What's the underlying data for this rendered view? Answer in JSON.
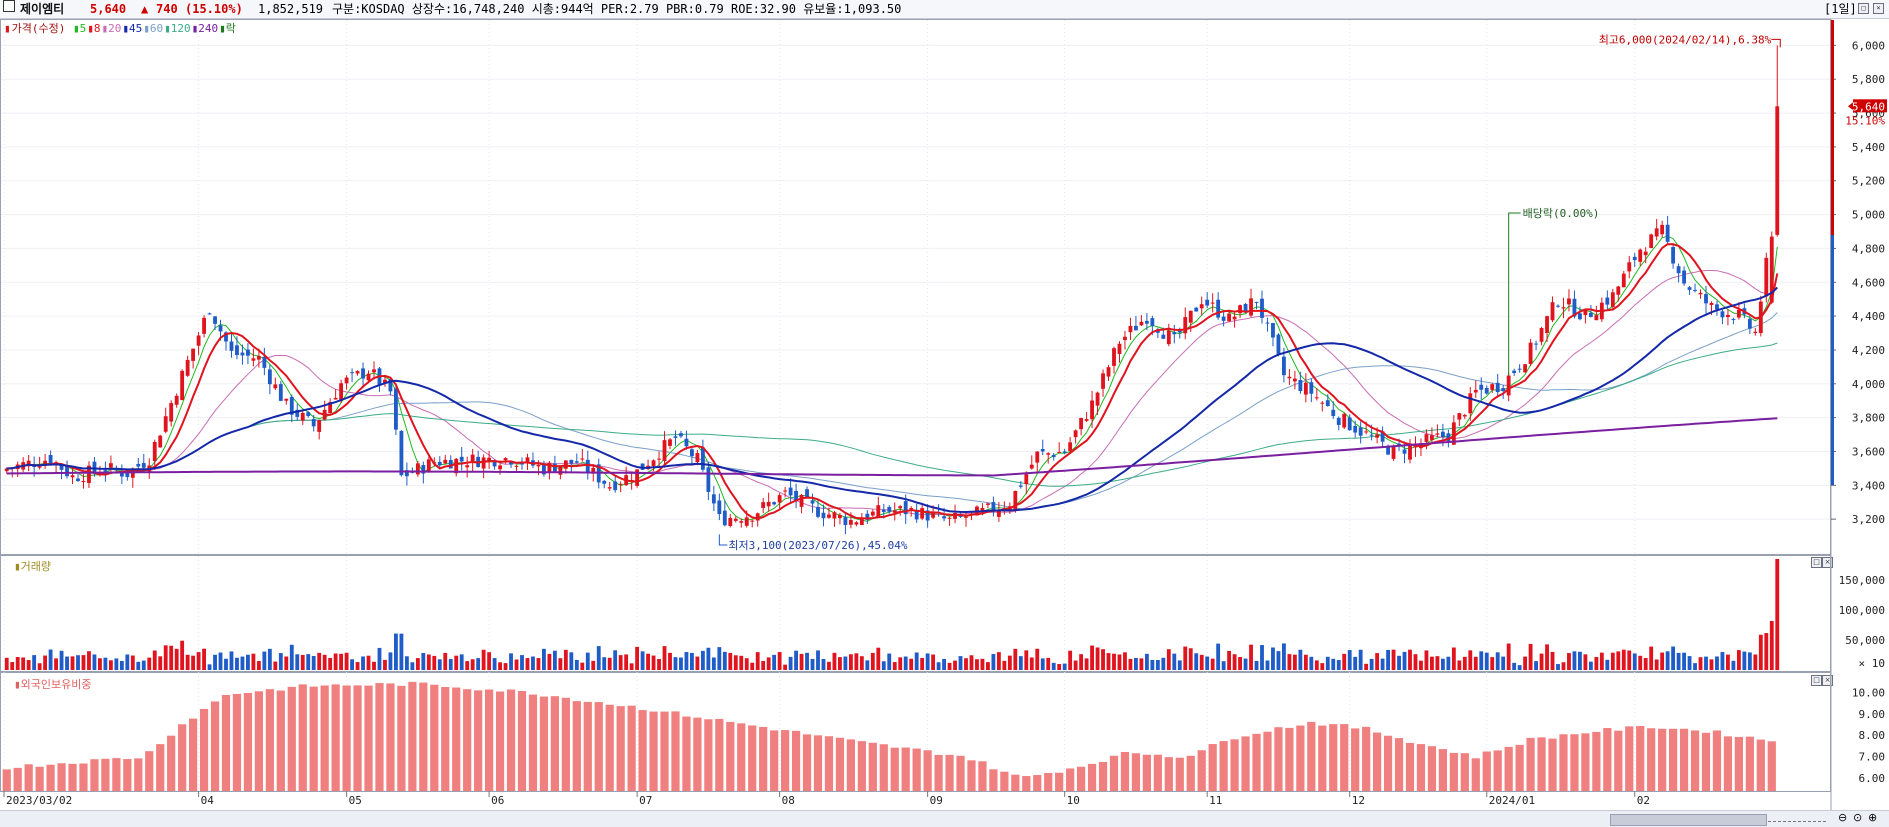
{
  "header": {
    "stock_name": "제이엠티",
    "price": "5,640",
    "change_arrow": "▲",
    "change": "740",
    "change_pct": "(15.10%)",
    "volume": "1,852,519",
    "info": "구분:KOSDAQ 상장수:16,748,240 시총:944억 PER:2.79 PBR:0.79 ROE:32.90 유보율:1,093.50",
    "period_button": "[1일]"
  },
  "legend": {
    "title": "가격(수정)",
    "items": [
      {
        "label": "5",
        "color": "#1fb91f"
      },
      {
        "label": "8",
        "color": "#e0141e"
      },
      {
        "label": "20",
        "color": "#c86eb4"
      },
      {
        "label": "45",
        "color": "#1428a8"
      },
      {
        "label": "60",
        "color": "#7aa0c8"
      },
      {
        "label": "120",
        "color": "#3cac86"
      },
      {
        "label": "240",
        "color": "#7a1fa0"
      },
      {
        "label": "락",
        "color": "#1f7a1f"
      }
    ]
  },
  "annotations": {
    "high": "최고6,000(2024/02/14),6.38%",
    "low": "최저3,100(2023/07/26),45.04%",
    "dividend": "배당락(0.00%)",
    "current_price_tag": "5,640",
    "current_pct_tag": "15.10%"
  },
  "panes": {
    "volume_label": "거래량",
    "foreign_label": "외국인보유비중"
  },
  "chart_data": [
    {
      "type": "candlestick",
      "title": "가격(수정)",
      "x_tick_labels": [
        "2023/03/02",
        "04",
        "05",
        "06",
        "07",
        "08",
        "09",
        "10",
        "11",
        "12",
        "2024/01",
        "02"
      ],
      "y_tick_labels": [
        "6,000",
        "5,800",
        "5,600",
        "5,400",
        "5,200",
        "5,000",
        "4,800",
        "4,600",
        "4,400",
        "4,200",
        "4,000",
        "3,800",
        "3,600",
        "3,400",
        "3,200"
      ],
      "ylim": [
        3000,
        6150
      ],
      "moving_averages": [
        "5",
        "8",
        "20",
        "45",
        "60",
        "120",
        "240"
      ],
      "last_close": 5640,
      "high_annotation": {
        "value": 6000,
        "date": "2024/02/14"
      },
      "low_annotation": {
        "value": 3100,
        "date": "2023/07/26"
      }
    },
    {
      "type": "bar",
      "title": "거래량",
      "y_tick_labels": [
        "150,000",
        "100,000",
        "50,000",
        "× 10"
      ],
      "unit_multiplier": 10,
      "ylim": [
        0,
        190000
      ]
    },
    {
      "type": "bar",
      "title": "외국인보유비중",
      "y_tick_labels": [
        "10.00",
        "9.00",
        "8.00",
        "7.00",
        "6.00"
      ],
      "ylim": [
        5.4,
        10.9
      ]
    }
  ],
  "colors": {
    "up": "#e0141e",
    "down": "#1f5cc8",
    "foreign_bar": "#f08080",
    "ma8": "#e0141e",
    "ma45": "#1428a8",
    "ma240": "#7a1fa0"
  }
}
